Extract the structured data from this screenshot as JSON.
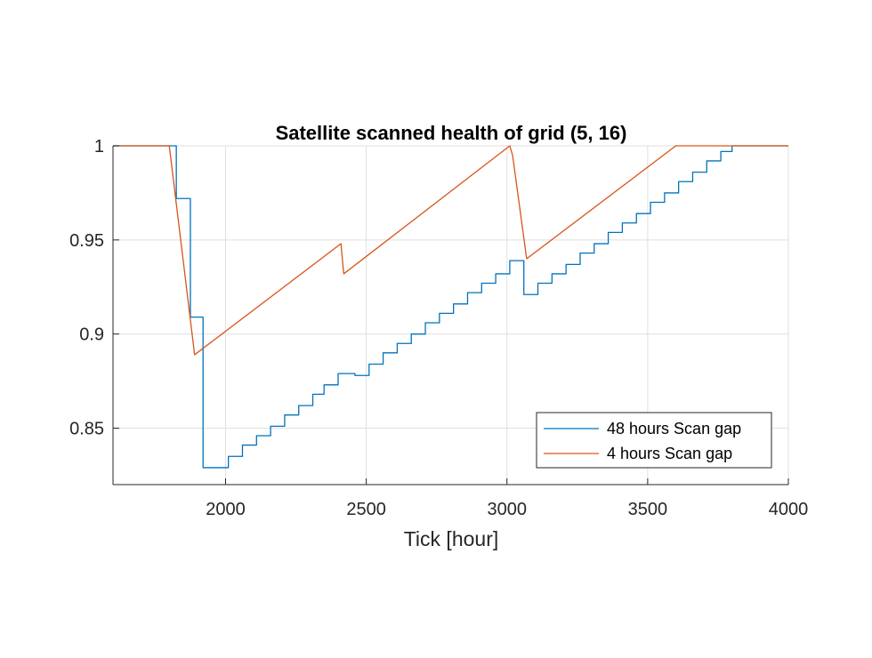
{
  "chart_data": {
    "type": "line",
    "title": "Satellite scanned health of grid (5, 16)",
    "xlabel": "Tick [hour]",
    "ylabel": "",
    "xlim": [
      1600,
      4000
    ],
    "ylim": [
      0.82,
      1.0
    ],
    "xticks": [
      2000,
      2500,
      3000,
      3500,
      4000
    ],
    "yticks": [
      0.85,
      0.9,
      0.95,
      1
    ],
    "xtick_labels": [
      "2000",
      "2500",
      "3000",
      "3500",
      "4000"
    ],
    "ytick_labels": [
      "0.85",
      "0.9",
      "0.95",
      "1"
    ],
    "grid": true,
    "legend_position": "bottom-right",
    "series": [
      {
        "name": "48 hours Scan gap",
        "color": "#0072BD",
        "step": true,
        "x": [
          1600,
          1820,
          1825,
          1870,
          1875,
          1920,
          2010,
          2060,
          2110,
          2160,
          2210,
          2260,
          2310,
          2350,
          2400,
          2460,
          2510,
          2560,
          2610,
          2660,
          2710,
          2760,
          2810,
          2860,
          2910,
          2960,
          3010,
          3060,
          3110,
          3160,
          3210,
          3260,
          3310,
          3360,
          3410,
          3460,
          3510,
          3560,
          3610,
          3660,
          3710,
          3760,
          3800,
          4000
        ],
        "y": [
          1.0,
          1.0,
          0.972,
          0.972,
          0.909,
          0.829,
          0.835,
          0.841,
          0.846,
          0.851,
          0.857,
          0.862,
          0.868,
          0.873,
          0.879,
          0.878,
          0.884,
          0.89,
          0.895,
          0.9,
          0.906,
          0.911,
          0.916,
          0.922,
          0.927,
          0.932,
          0.939,
          0.921,
          0.927,
          0.932,
          0.937,
          0.943,
          0.948,
          0.954,
          0.959,
          0.964,
          0.97,
          0.975,
          0.981,
          0.986,
          0.992,
          0.997,
          1.0,
          1.0
        ]
      },
      {
        "name": "4 hours Scan gap",
        "color": "#D95319",
        "step": false,
        "x": [
          1600,
          1800,
          1890,
          2410,
          2420,
          3010,
          3020,
          3070,
          3600,
          4000
        ],
        "y": [
          1.0,
          1.0,
          0.889,
          0.948,
          0.932,
          1.0,
          0.995,
          0.94,
          1.0,
          1.0
        ]
      }
    ]
  }
}
